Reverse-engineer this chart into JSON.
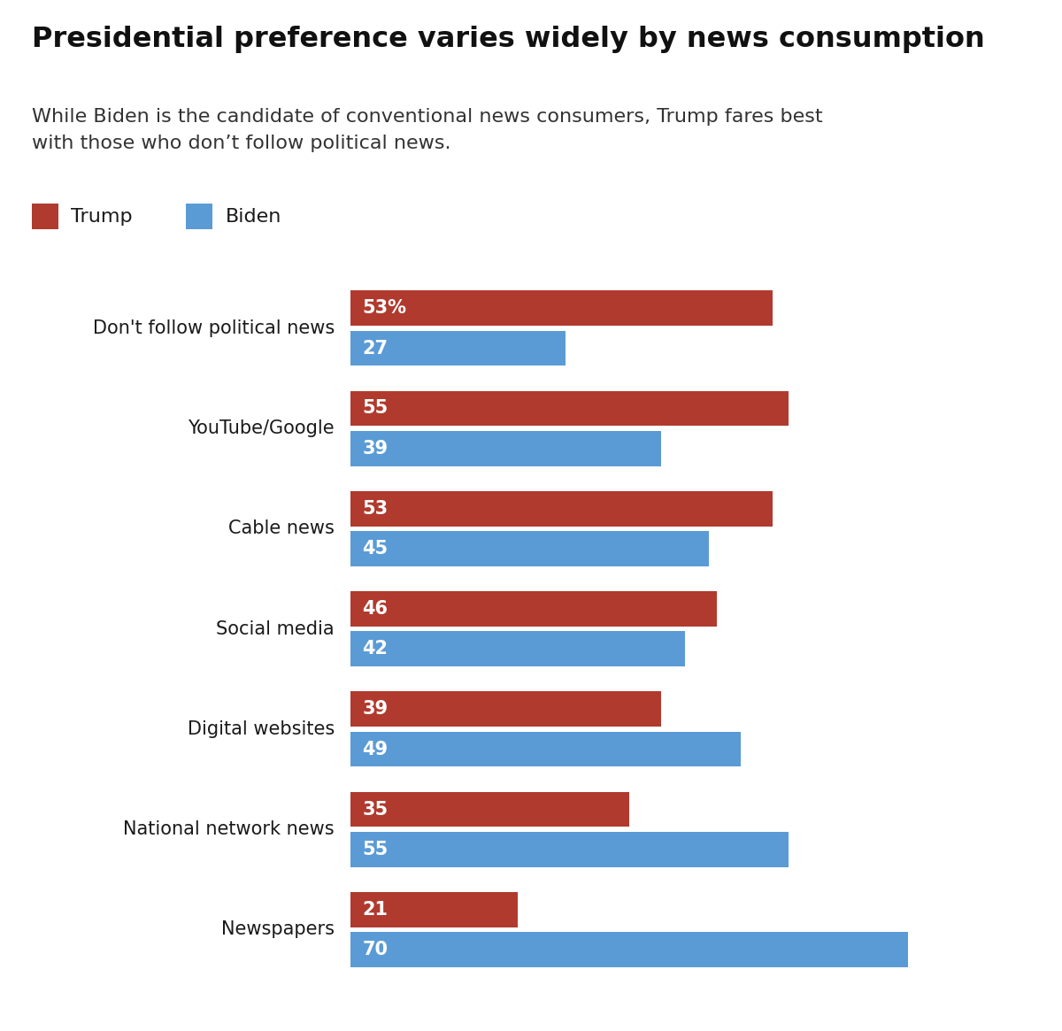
{
  "title": "Presidential preference varies widely by news consumption",
  "subtitle": "While Biden is the candidate of conventional news consumers, Trump fares best\nwith those who don’t follow political news.",
  "categories": [
    "Don't follow political news",
    "YouTube/Google",
    "Cable news",
    "Social media",
    "Digital websites",
    "National network news",
    "Newspapers"
  ],
  "trump_values": [
    53,
    55,
    53,
    46,
    39,
    35,
    21
  ],
  "biden_values": [
    27,
    39,
    45,
    42,
    49,
    55,
    70
  ],
  "trump_color": "#b03a2e",
  "biden_color": "#5b9bd5",
  "background_color": "#ffffff",
  "title_fontsize": 23,
  "subtitle_fontsize": 16,
  "label_fontsize": 15,
  "bar_label_fontsize": 15,
  "legend_fontsize": 16,
  "first_label": "53%",
  "xlim": [
    0,
    80
  ],
  "text_color": "#1a1a1a"
}
